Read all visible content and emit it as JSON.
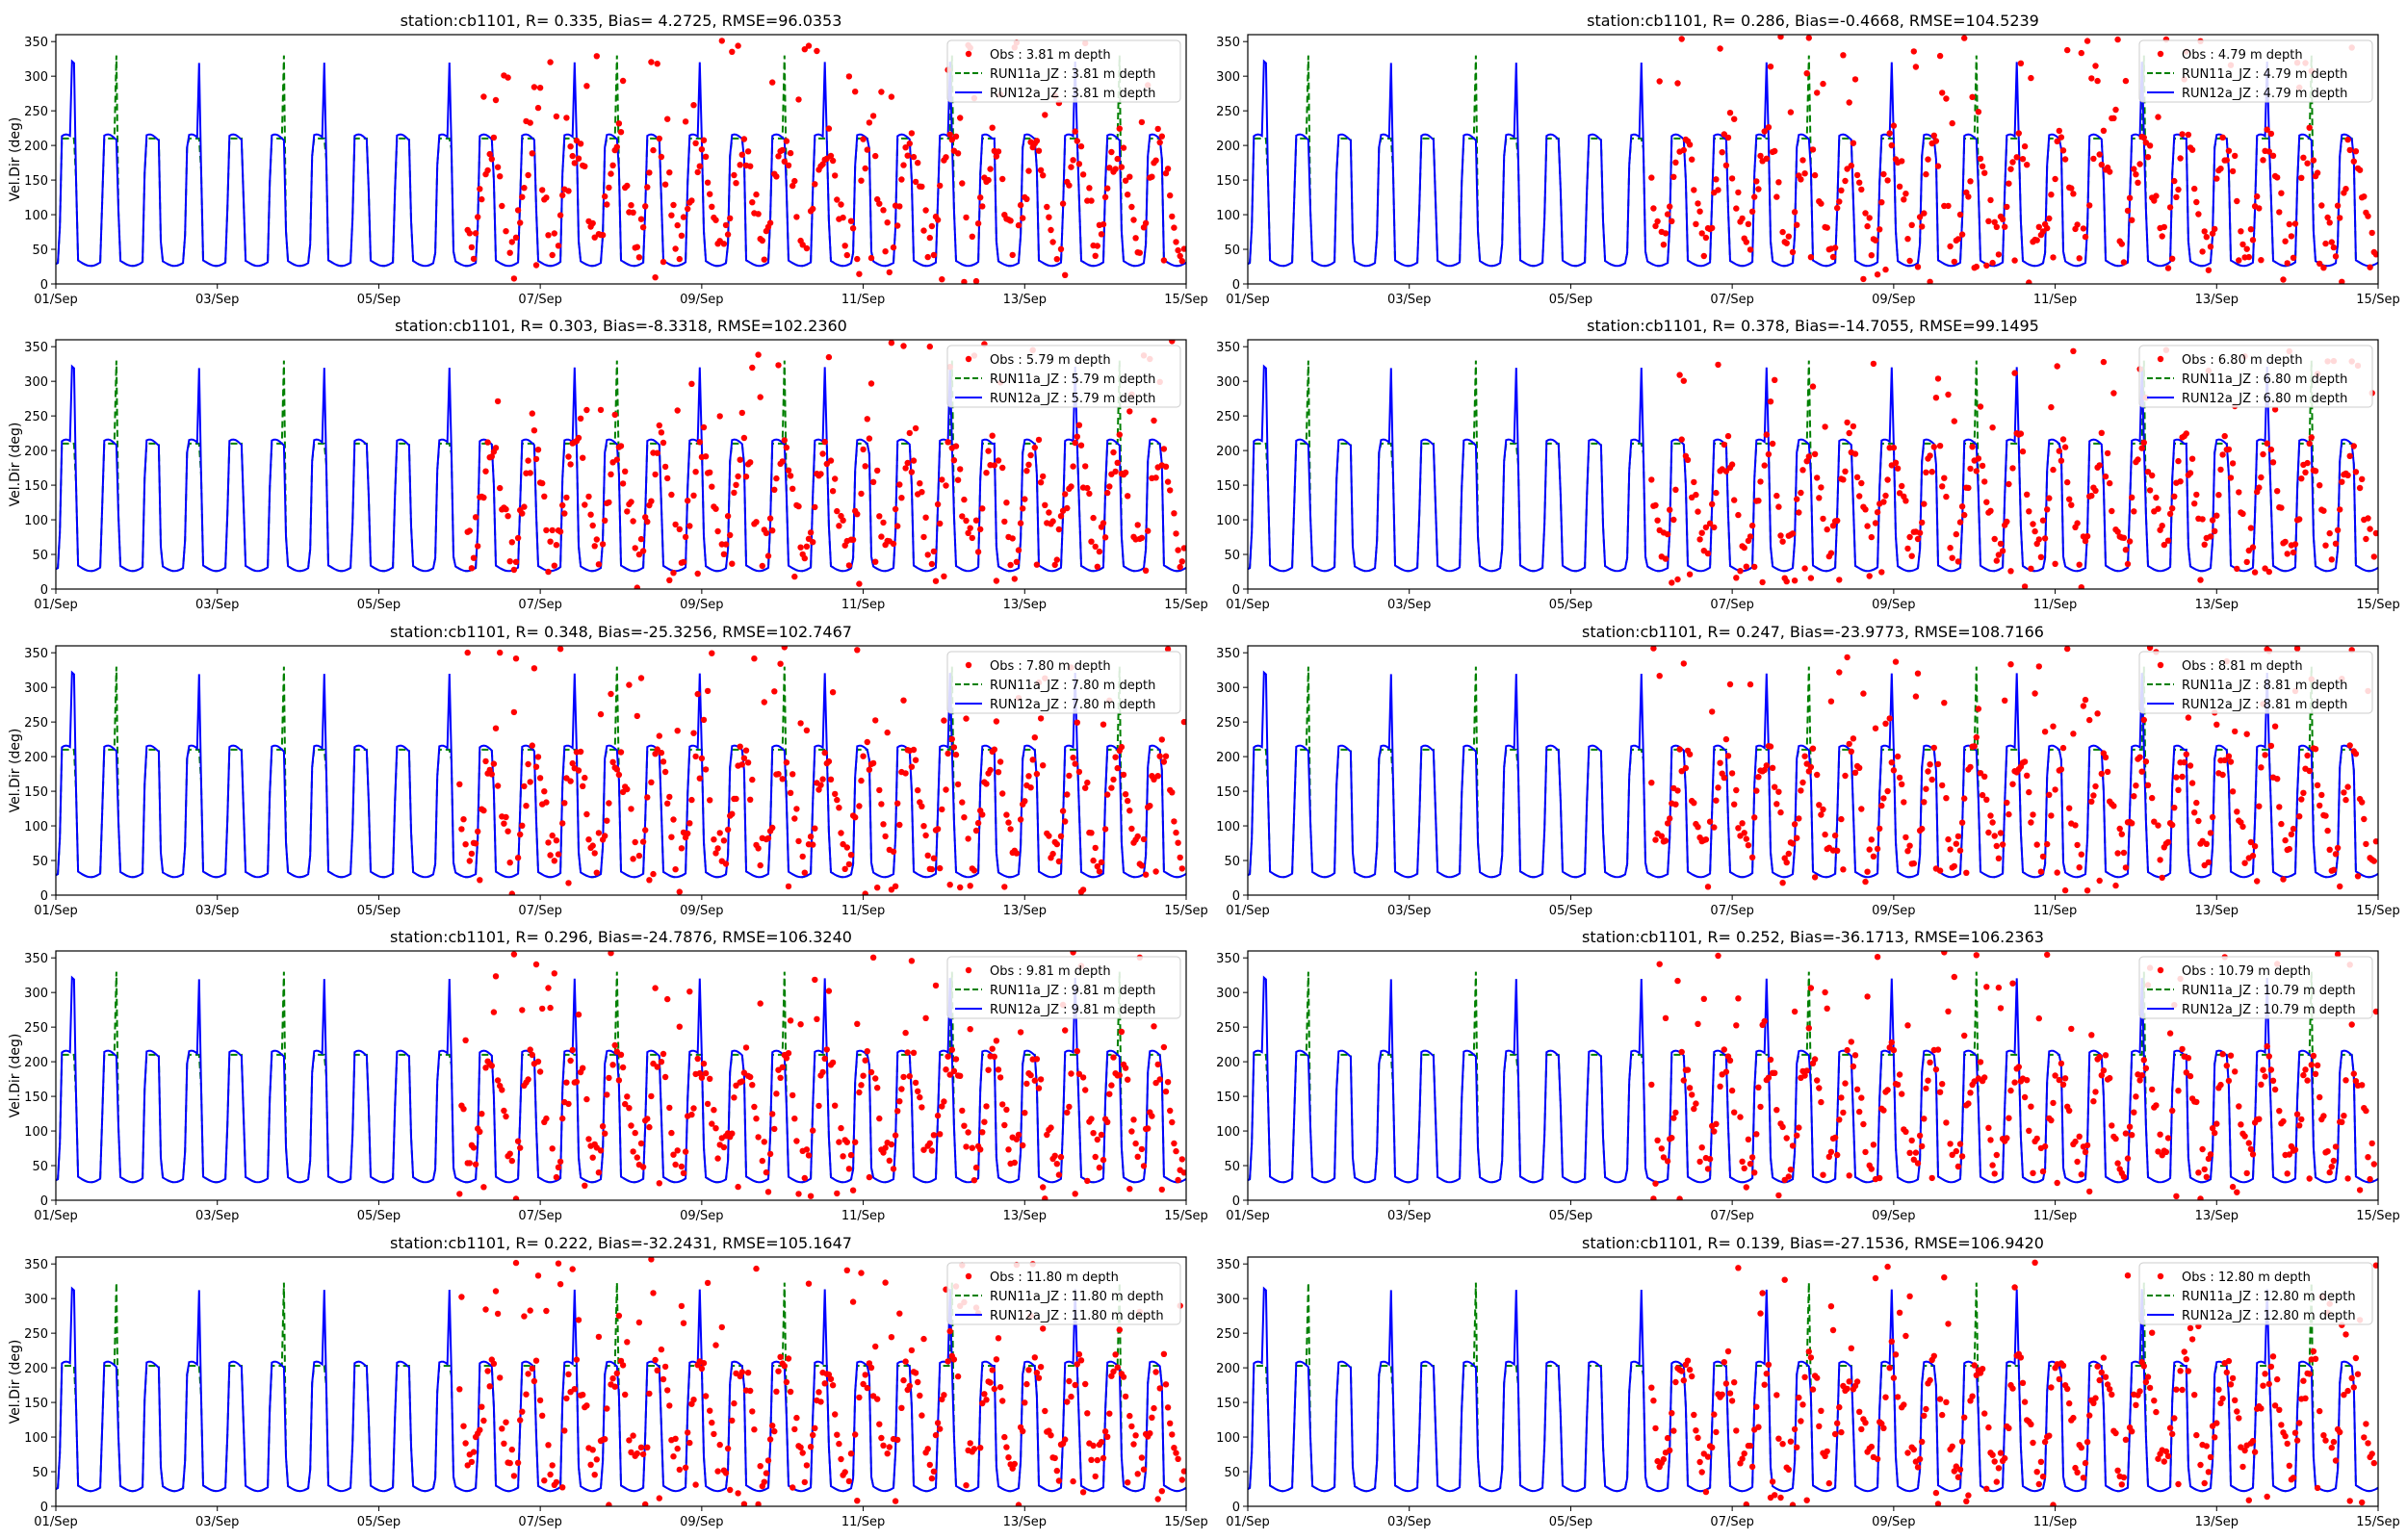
{
  "figure": {
    "ylabel": "Vel.Dir (deg)",
    "xticks": [
      "01/Sep",
      "03/Sep",
      "05/Sep",
      "07/Sep",
      "09/Sep",
      "11/Sep",
      "13/Sep",
      "15/Sep"
    ],
    "yticks": [
      0,
      50,
      100,
      150,
      200,
      250,
      300,
      350
    ]
  },
  "colors": {
    "obs": "#ff0000",
    "run11": "#008000",
    "run12": "#0000ff"
  },
  "chart_data": [
    {
      "type": "line",
      "title": "station:cb1101, R= 0.335, Bias= 4.2725, RMSE=96.0353",
      "ylabel": "Vel.Dir (deg)",
      "ylim": [
        0,
        360
      ],
      "xlim": [
        "01/Sep",
        "15/Sep"
      ],
      "legend_placement": "upper right",
      "series": [
        {
          "name": "Obs : 3.81 m depth",
          "style": "points"
        },
        {
          "name": "RUN11a_JZ : 3.81 m depth",
          "style": "dashed"
        },
        {
          "name": "RUN12a_JZ : 3.81 m depth",
          "style": "solid"
        }
      ]
    },
    {
      "type": "line",
      "title": "station:cb1101, R= 0.286, Bias=-0.4668, RMSE=104.5239",
      "ylabel": "",
      "ylim": [
        0,
        360
      ],
      "xlim": [
        "01/Sep",
        "15/Sep"
      ],
      "legend_placement": "upper right",
      "series": [
        {
          "name": "Obs : 4.79 m depth",
          "style": "points"
        },
        {
          "name": "RUN11a_JZ : 4.79 m depth",
          "style": "dashed"
        },
        {
          "name": "RUN12a_JZ : 4.79 m depth",
          "style": "solid"
        }
      ]
    },
    {
      "type": "line",
      "title": "station:cb1101, R= 0.303, Bias=-8.3318, RMSE=102.2360",
      "ylabel": "Vel.Dir (deg)",
      "ylim": [
        0,
        360
      ],
      "xlim": [
        "01/Sep",
        "15/Sep"
      ],
      "legend_placement": "upper right",
      "series": [
        {
          "name": "Obs : 5.79 m depth",
          "style": "points"
        },
        {
          "name": "RUN11a_JZ : 5.79 m depth",
          "style": "dashed"
        },
        {
          "name": "RUN12a_JZ : 5.79 m depth",
          "style": "solid"
        }
      ]
    },
    {
      "type": "line",
      "title": "station:cb1101, R= 0.378, Bias=-14.7055, RMSE=99.1495",
      "ylabel": "",
      "ylim": [
        0,
        360
      ],
      "xlim": [
        "01/Sep",
        "15/Sep"
      ],
      "legend_placement": "upper right",
      "series": [
        {
          "name": "Obs : 6.80 m depth",
          "style": "points"
        },
        {
          "name": "RUN11a_JZ : 6.80 m depth",
          "style": "dashed"
        },
        {
          "name": "RUN12a_JZ : 6.80 m depth",
          "style": "solid"
        }
      ]
    },
    {
      "type": "line",
      "title": "station:cb1101, R= 0.348, Bias=-25.3256, RMSE=102.7467",
      "ylabel": "Vel.Dir (deg)",
      "ylim": [
        0,
        360
      ],
      "xlim": [
        "01/Sep",
        "15/Sep"
      ],
      "legend_placement": "upper right",
      "series": [
        {
          "name": "Obs : 7.80 m depth",
          "style": "points"
        },
        {
          "name": "RUN11a_JZ : 7.80 m depth",
          "style": "dashed"
        },
        {
          "name": "RUN12a_JZ : 7.80 m depth",
          "style": "solid"
        }
      ]
    },
    {
      "type": "line",
      "title": "station:cb1101, R= 0.247, Bias=-23.9773, RMSE=108.7166",
      "ylabel": "",
      "ylim": [
        0,
        360
      ],
      "xlim": [
        "01/Sep",
        "15/Sep"
      ],
      "legend_placement": "upper right",
      "series": [
        {
          "name": "Obs : 8.81 m depth",
          "style": "points"
        },
        {
          "name": "RUN11a_JZ : 8.81 m depth",
          "style": "dashed"
        },
        {
          "name": "RUN12a_JZ : 8.81 m depth",
          "style": "solid"
        }
      ]
    },
    {
      "type": "line",
      "title": "station:cb1101, R= 0.296, Bias=-24.7876, RMSE=106.3240",
      "ylabel": "Vel.Dir (deg)",
      "ylim": [
        0,
        360
      ],
      "xlim": [
        "01/Sep",
        "15/Sep"
      ],
      "legend_placement": "upper right",
      "series": [
        {
          "name": "Obs : 9.81 m depth",
          "style": "points"
        },
        {
          "name": "RUN11a_JZ : 9.81 m depth",
          "style": "dashed"
        },
        {
          "name": "RUN12a_JZ : 9.81 m depth",
          "style": "solid"
        }
      ]
    },
    {
      "type": "line",
      "title": "station:cb1101, R= 0.252, Bias=-36.1713, RMSE=106.2363",
      "ylabel": "",
      "ylim": [
        0,
        360
      ],
      "xlim": [
        "01/Sep",
        "15/Sep"
      ],
      "legend_placement": "upper right",
      "series": [
        {
          "name": "Obs : 10.79 m depth",
          "style": "points"
        },
        {
          "name": "RUN11a_JZ : 10.79 m depth",
          "style": "dashed"
        },
        {
          "name": "RUN12a_JZ : 10.79 m depth",
          "style": "solid"
        }
      ]
    },
    {
      "type": "line",
      "title": "station:cb1101, R= 0.222, Bias=-32.2431, RMSE=105.1647",
      "ylabel": "Vel.Dir (deg)",
      "ylim": [
        0,
        360
      ],
      "xlim": [
        "01/Sep",
        "15/Sep"
      ],
      "legend_placement": "upper right",
      "series": [
        {
          "name": "Obs : 11.80 m depth",
          "style": "points"
        },
        {
          "name": "RUN11a_JZ : 11.80 m depth",
          "style": "dashed"
        },
        {
          "name": "RUN12a_JZ : 11.80 m depth",
          "style": "solid"
        }
      ]
    },
    {
      "type": "line",
      "title": "station:cb1101, R= 0.139, Bias=-27.1536, RMSE=106.9420",
      "ylabel": "",
      "ylim": [
        0,
        360
      ],
      "xlim": [
        "01/Sep",
        "15/Sep"
      ],
      "legend_placement": "upper right",
      "series": [
        {
          "name": "Obs : 12.80 m depth",
          "style": "points"
        },
        {
          "name": "RUN11a_JZ : 12.80 m depth",
          "style": "dashed"
        },
        {
          "name": "RUN12a_JZ : 12.80 m depth",
          "style": "solid"
        }
      ]
    }
  ]
}
